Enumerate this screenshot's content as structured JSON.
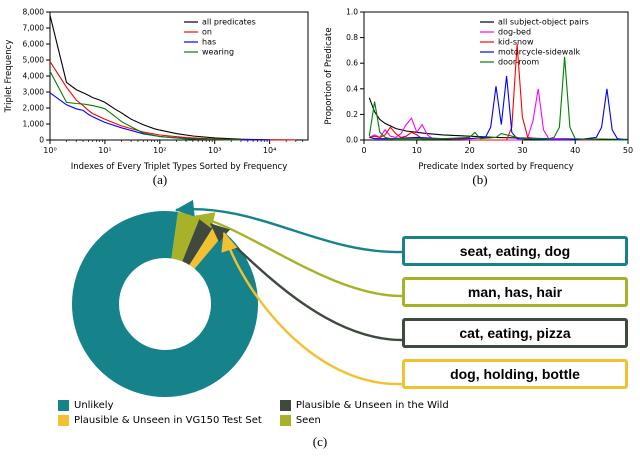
{
  "figure": {
    "caption_a": "(a)",
    "caption_b": "(b)",
    "caption_c": "(c)"
  },
  "chart_data": [
    {
      "id": "triplet-frequency",
      "type": "line",
      "title": "",
      "xlabel": "Indexes of Every Triplet Types Sorted by Frequency",
      "ylabel": "Triplet Frequency",
      "xscale": "log",
      "xlim": [
        1,
        50000
      ],
      "ylim": [
        0,
        8000
      ],
      "xtick_values": [
        1,
        10,
        100,
        1000,
        10000
      ],
      "xtick_labels": [
        "10⁰",
        "10¹",
        "10²",
        "10³",
        "10⁴"
      ],
      "ytick_values": [
        0,
        1000,
        2000,
        3000,
        4000,
        5000,
        6000,
        7000,
        8000
      ],
      "ytick_labels": [
        "0",
        "1,000",
        "2,000",
        "3,000",
        "4,000",
        "5,000",
        "6,000",
        "7,000",
        "8,000"
      ],
      "legend_position": "upper right",
      "grid": false,
      "series": [
        {
          "name": "all predicates",
          "color": "#000000",
          "x": [
            1,
            2,
            3,
            4,
            5,
            6,
            8,
            10,
            15,
            20,
            30,
            50,
            80,
            100,
            200,
            400,
            1000,
            3000,
            10000,
            30000,
            50000
          ],
          "y": [
            7800,
            3600,
            3150,
            2950,
            2800,
            2650,
            2500,
            2350,
            1950,
            1700,
            1300,
            950,
            700,
            620,
            400,
            250,
            130,
            50,
            15,
            4,
            2
          ]
        },
        {
          "name": "on",
          "color": "#ff0000",
          "x": [
            1,
            2,
            3,
            4,
            5,
            6,
            8,
            10,
            20,
            50,
            100,
            300,
            1000,
            3000,
            10000,
            30000
          ],
          "y": [
            4900,
            3300,
            2500,
            2150,
            1850,
            1650,
            1450,
            1300,
            880,
            500,
            310,
            150,
            55,
            16,
            4,
            1
          ]
        },
        {
          "name": "has",
          "color": "#0000ff",
          "x": [
            1,
            2,
            3,
            4,
            5,
            6,
            8,
            10,
            20,
            50,
            100,
            300,
            1000,
            3000,
            10000
          ],
          "y": [
            2950,
            2200,
            1950,
            1850,
            1600,
            1450,
            1250,
            1100,
            760,
            390,
            220,
            95,
            30,
            8,
            2
          ]
        },
        {
          "name": "wearing",
          "color": "#008000",
          "x": [
            1,
            2,
            3,
            4,
            5,
            6,
            8,
            10,
            15,
            20,
            50,
            100,
            300,
            1000,
            3000
          ],
          "y": [
            4300,
            2350,
            2280,
            2250,
            2200,
            2150,
            2050,
            1950,
            1500,
            1150,
            430,
            210,
            75,
            18,
            4
          ]
        }
      ]
    },
    {
      "id": "predicate-proportion",
      "type": "line",
      "title": "",
      "xlabel": "Predicate Index sorted by Frequency",
      "ylabel": "Proportion of Predicate",
      "xscale": "linear",
      "xlim": [
        0,
        50
      ],
      "ylim": [
        0,
        1.0
      ],
      "xtick_values": [
        0,
        10,
        20,
        30,
        40,
        50
      ],
      "xtick_labels": [
        "0",
        "10",
        "20",
        "30",
        "40",
        "50"
      ],
      "ytick_values": [
        0,
        0.2,
        0.4,
        0.6,
        0.8,
        1.0
      ],
      "ytick_labels": [
        "0.0",
        "0.2",
        "0.4",
        "0.6",
        "0.8",
        "1.0"
      ],
      "legend_position": "upper right",
      "grid": false,
      "series": [
        {
          "name": "all subject-object pairs",
          "color": "#000000",
          "x": [
            1,
            2,
            3,
            4,
            5,
            6,
            8,
            10,
            12,
            15,
            20,
            25,
            30,
            35,
            40,
            45,
            50
          ],
          "y": [
            0.33,
            0.22,
            0.16,
            0.13,
            0.11,
            0.09,
            0.07,
            0.06,
            0.05,
            0.04,
            0.03,
            0.02,
            0.015,
            0.01,
            0.008,
            0.006,
            0.005
          ]
        },
        {
          "name": "dog-bed",
          "color": "#ff00ff",
          "x": [
            1,
            2,
            3,
            4,
            5,
            6,
            7,
            8,
            9,
            10,
            11,
            12,
            13,
            15,
            20,
            25,
            30,
            31,
            32,
            33,
            34,
            35,
            40,
            45,
            50
          ],
          "y": [
            0.02,
            0.04,
            0.02,
            0.08,
            0.03,
            0.02,
            0.05,
            0.12,
            0.17,
            0.06,
            0.12,
            0.04,
            0.01,
            0.01,
            0,
            0,
            0,
            0.02,
            0.15,
            0.4,
            0.08,
            0.01,
            0,
            0,
            0
          ]
        },
        {
          "name": "kid-snow",
          "color": "#ff0000",
          "x": [
            1,
            2,
            3,
            4,
            5,
            6,
            7,
            8,
            9,
            10,
            11,
            15,
            20,
            25,
            27,
            28,
            29,
            30,
            31,
            35,
            40,
            45,
            50
          ],
          "y": [
            0.02,
            0.03,
            0.02,
            0.04,
            0.1,
            0.05,
            0.02,
            0.03,
            0.06,
            0.04,
            0.01,
            0.01,
            0,
            0,
            0,
            0.1,
            0.75,
            0.18,
            0.02,
            0,
            0,
            0,
            0
          ]
        },
        {
          "name": "motorcycle-sidewalk",
          "color": "#0000ff",
          "x": [
            1,
            2,
            5,
            10,
            15,
            20,
            23,
            24,
            25,
            26,
            27,
            28,
            29,
            35,
            40,
            44,
            45,
            46,
            47,
            48,
            50
          ],
          "y": [
            0.02,
            0.01,
            0.01,
            0.02,
            0.01,
            0.01,
            0.02,
            0.1,
            0.42,
            0.12,
            0.5,
            0.06,
            0.01,
            0,
            0,
            0.02,
            0.1,
            0.4,
            0.08,
            0.01,
            0
          ]
        },
        {
          "name": "door-room",
          "color": "#008000",
          "x": [
            1,
            2,
            3,
            4,
            5,
            10,
            15,
            20,
            21,
            22,
            25,
            26,
            30,
            35,
            36,
            37,
            38,
            39,
            40,
            45,
            50
          ],
          "y": [
            0.03,
            0.3,
            0.06,
            0.02,
            0.01,
            0.01,
            0.01,
            0.02,
            0.06,
            0.01,
            0.02,
            0.05,
            0.01,
            0.01,
            0.02,
            0.1,
            0.65,
            0.1,
            0.01,
            0,
            0
          ]
        }
      ]
    },
    {
      "id": "triplet-composition",
      "type": "donut",
      "start_angle_deg": 8,
      "slices": [
        {
          "label": "Seen",
          "value": 3.9,
          "color": "#a8b229"
        },
        {
          "label": "Plausible & Unseen in the Wild",
          "value": 2.8,
          "color": "#3e4a3d"
        },
        {
          "label": "Plausible & Unseen in VG150 Test Set",
          "value": 2.2,
          "color": "#f3c02f"
        },
        {
          "label": "Unlikely",
          "value": 91.1,
          "color": "#16838a"
        }
      ],
      "callouts": [
        {
          "text": "seat, eating, dog",
          "color": "#16838a"
        },
        {
          "text": "man, has, hair",
          "color": "#a8b229"
        },
        {
          "text": "cat, eating, pizza",
          "color": "#3e4a3d"
        },
        {
          "text": "dog, holding, bottle",
          "color": "#f3c02f"
        }
      ],
      "legend": [
        {
          "label": "Unlikely",
          "color": "#16838a"
        },
        {
          "label": "Plausible & Unseen in the Wild",
          "color": "#3e4a3d"
        },
        {
          "label": "Plausible & Unseen in VG150 Test Set",
          "color": "#f3c02f"
        },
        {
          "label": "Seen",
          "color": "#a8b229"
        }
      ]
    }
  ]
}
